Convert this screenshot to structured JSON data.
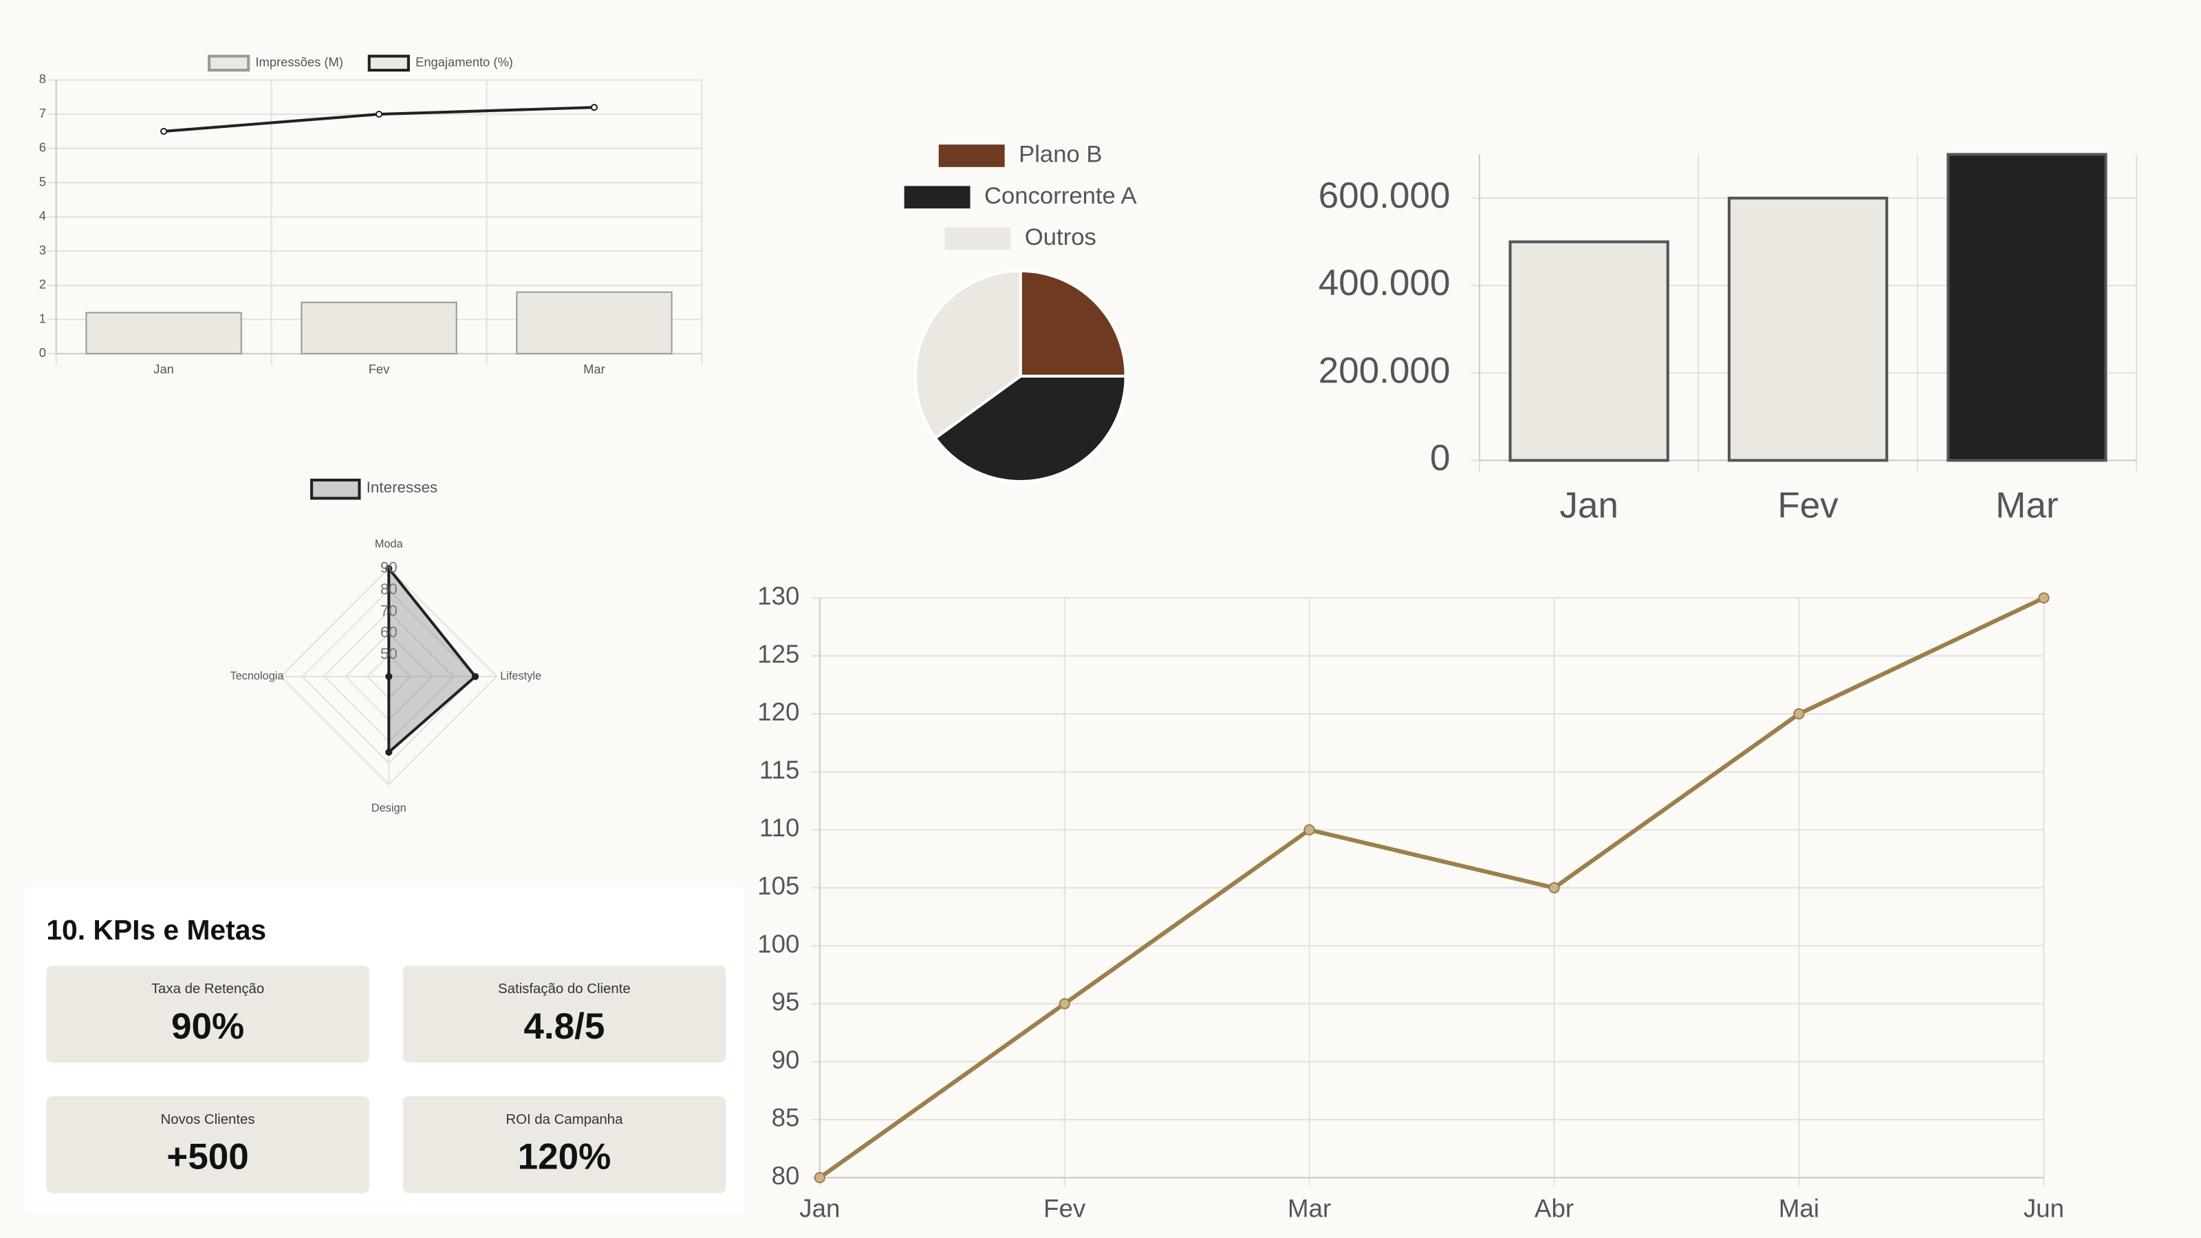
{
  "chart_data": [
    {
      "type": "combo",
      "categories": [
        "Jan",
        "Fev",
        "Mar"
      ],
      "series": [
        {
          "name": "Impressões (M)",
          "type": "bar",
          "color": "#ebe8e2",
          "values": [
            1.2,
            1.5,
            1.8
          ]
        },
        {
          "name": "Engajamento (%)",
          "type": "line",
          "color": "#222222",
          "values": [
            6.5,
            7.0,
            7.2
          ]
        }
      ],
      "ylim": [
        0,
        8
      ],
      "yticks": [
        0,
        1,
        2,
        3,
        4,
        5,
        6,
        7,
        8
      ],
      "grid": true,
      "legend": "top"
    },
    {
      "type": "pie",
      "categories": [
        "Plano B",
        "Concorrente A",
        "Outros"
      ],
      "values": [
        25,
        40,
        35
      ],
      "colors": [
        "#6e3a22",
        "#222222",
        "#ebe8e2"
      ],
      "legend": "top"
    },
    {
      "type": "bar",
      "categories": [
        "Jan",
        "Fev",
        "Mar"
      ],
      "values": [
        500000,
        600000,
        700000
      ],
      "colors": [
        "#ebe8e2",
        "#ebe8e2",
        "#222222"
      ],
      "ylim": [
        0,
        700000
      ],
      "yticks": [
        0,
        {
          "value": 200000,
          "label": "200.000"
        },
        {
          "value": 400000,
          "label": "400.000"
        },
        {
          "value": 600000,
          "label": "600.000"
        }
      ],
      "grid": true
    },
    {
      "type": "radar",
      "categories": [
        "Moda",
        "Lifestyle",
        "Design",
        "Tecnologia"
      ],
      "series": [
        {
          "name": "Interesses",
          "color": "#222222",
          "values": [
            90,
            80,
            75,
            40
          ]
        }
      ],
      "rlim": [
        40,
        90
      ],
      "rticks": [
        50,
        60,
        70,
        80,
        90
      ],
      "legend": "top"
    },
    {
      "type": "line",
      "categories": [
        "Jan",
        "Fev",
        "Mar",
        "Abr",
        "Mai",
        "Jun"
      ],
      "values": [
        80,
        95,
        110,
        105,
        120,
        130
      ],
      "color": "#9c7f4b",
      "ylim": [
        80,
        130
      ],
      "yticks": [
        80,
        85,
        90,
        95,
        100,
        105,
        110,
        115,
        120,
        125,
        130
      ],
      "grid": true
    }
  ],
  "kpis": {
    "title": "10. KPIs e Metas",
    "items": [
      {
        "label": "Taxa de Retenção",
        "value": "90%"
      },
      {
        "label": "Satisfação do Cliente",
        "value": "4.8/5"
      },
      {
        "label": "Novos Clientes",
        "value": "+500"
      },
      {
        "label": "ROI da Campanha",
        "value": "120%"
      }
    ]
  }
}
